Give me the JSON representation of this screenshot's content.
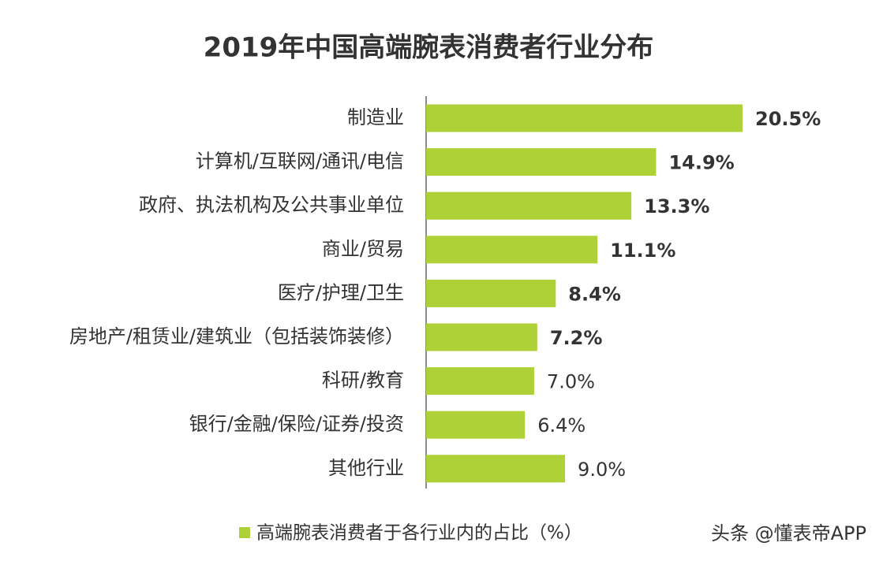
{
  "chart_data": {
    "type": "bar",
    "orientation": "horizontal",
    "title": "2019年中国高端腕表消费者行业分布",
    "categories": [
      "制造业",
      "计算机/互联网/通讯/电信",
      "政府、执法机构及公共事业单位",
      "商业/贸易",
      "医疗/护理/卫生",
      "房地产/租赁业/建筑业（包括装饰装修）",
      "科研/教育",
      "银行/金融/保险/证券/投资",
      "其他行业"
    ],
    "series": [
      {
        "name": "高端腕表消费者于各行业内的占比（%）",
        "color": "#add136",
        "values": [
          20.5,
          14.9,
          13.3,
          11.1,
          8.4,
          7.2,
          7.0,
          6.4,
          9.0
        ],
        "value_labels": [
          "20.5%",
          "14.9%",
          "13.3%",
          "11.1%",
          "8.4%",
          "7.2%",
          "7.0%",
          "6.4%",
          "9.0%"
        ]
      }
    ],
    "watermark": "头条 @懂表帝APP"
  }
}
